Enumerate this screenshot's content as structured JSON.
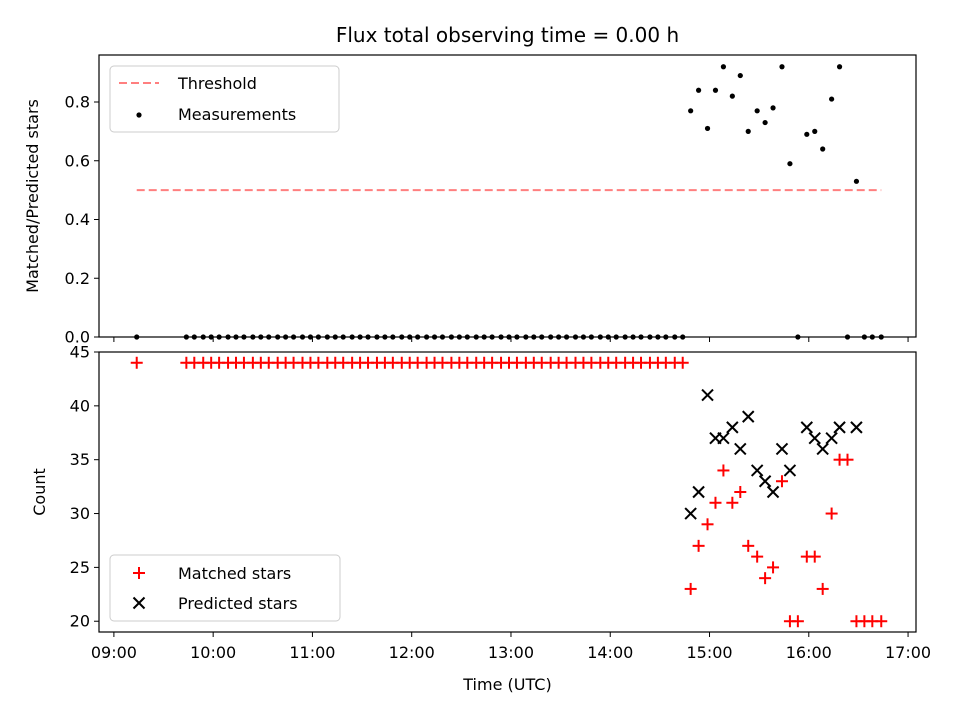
{
  "chart_data": [
    {
      "type": "scatter",
      "title": "Flux total observing time = 0.00 h",
      "ylabel": "Matched/Predicted stars",
      "ylim": [
        0,
        0.96
      ],
      "yticks": [
        0.0,
        0.2,
        0.4,
        0.6,
        0.8
      ],
      "xlim": [
        8.85,
        17.08
      ],
      "legend_position": "upper-left",
      "threshold": {
        "name": "Threshold",
        "y": 0.5,
        "x": [
          9.23,
          16.73
        ],
        "color": "#ff7f7f"
      },
      "series": [
        {
          "name": "Measurements",
          "color": "#000000",
          "x": [
            9.23,
            9.73,
            9.81,
            9.9,
            9.98,
            10.06,
            10.15,
            10.23,
            10.31,
            10.4,
            10.48,
            10.56,
            10.65,
            10.73,
            10.81,
            10.9,
            10.98,
            11.06,
            11.15,
            11.23,
            11.31,
            11.4,
            11.48,
            11.56,
            11.65,
            11.73,
            11.81,
            11.9,
            11.98,
            12.06,
            12.15,
            12.23,
            12.31,
            12.4,
            12.48,
            12.56,
            12.65,
            12.73,
            12.81,
            12.9,
            12.98,
            13.06,
            13.15,
            13.23,
            13.31,
            13.4,
            13.48,
            13.56,
            13.65,
            13.73,
            13.81,
            13.9,
            13.98,
            14.06,
            14.15,
            14.23,
            14.31,
            14.4,
            14.48,
            14.56,
            14.65,
            14.73,
            14.81,
            14.89,
            14.98,
            15.06,
            15.14,
            15.23,
            15.31,
            15.39,
            15.48,
            15.56,
            15.64,
            15.73,
            15.81,
            15.89,
            15.98,
            16.06,
            16.14,
            16.23,
            16.31,
            16.39,
            16.48,
            16.56,
            16.64,
            16.73
          ],
          "y": [
            0,
            0,
            0,
            0,
            0,
            0,
            0,
            0,
            0,
            0,
            0,
            0,
            0,
            0,
            0,
            0,
            0,
            0,
            0,
            0,
            0,
            0,
            0,
            0,
            0,
            0,
            0,
            0,
            0,
            0,
            0,
            0,
            0,
            0,
            0,
            0,
            0,
            0,
            0,
            0,
            0,
            0,
            0,
            0,
            0,
            0,
            0,
            0,
            0,
            0,
            0,
            0,
            0,
            0,
            0,
            0,
            0,
            0,
            0,
            0,
            0,
            0,
            0.77,
            0.84,
            0.71,
            0.84,
            0.92,
            0.82,
            0.89,
            0.7,
            0.77,
            0.73,
            0.78,
            0.92,
            0.59,
            0,
            0.69,
            0.7,
            0.64,
            0.81,
            0.92,
            0,
            0.53,
            0,
            0,
            0
          ]
        }
      ]
    },
    {
      "type": "scatter",
      "xlabel": "Time (UTC)",
      "ylabel": "Count",
      "ylim": [
        19,
        45
      ],
      "yticks": [
        20,
        25,
        30,
        35,
        40,
        45
      ],
      "xlim": [
        8.85,
        17.08
      ],
      "xticks": [
        "09:00",
        "10:00",
        "11:00",
        "12:00",
        "13:00",
        "14:00",
        "15:00",
        "16:00",
        "17:00"
      ],
      "legend_position": "lower-left",
      "series": [
        {
          "name": "Matched stars",
          "color": "#ff0000",
          "marker": "plus",
          "x": [
            9.23,
            9.73,
            9.81,
            9.9,
            9.98,
            10.06,
            10.15,
            10.23,
            10.31,
            10.4,
            10.48,
            10.56,
            10.65,
            10.73,
            10.81,
            10.9,
            10.98,
            11.06,
            11.15,
            11.23,
            11.31,
            11.4,
            11.48,
            11.56,
            11.65,
            11.73,
            11.81,
            11.9,
            11.98,
            12.06,
            12.15,
            12.23,
            12.31,
            12.4,
            12.48,
            12.56,
            12.65,
            12.73,
            12.81,
            12.9,
            12.98,
            13.06,
            13.15,
            13.23,
            13.31,
            13.4,
            13.48,
            13.56,
            13.65,
            13.73,
            13.81,
            13.9,
            13.98,
            14.06,
            14.15,
            14.23,
            14.31,
            14.4,
            14.48,
            14.56,
            14.65,
            14.73,
            14.81,
            14.89,
            14.98,
            15.06,
            15.14,
            15.23,
            15.31,
            15.39,
            15.48,
            15.56,
            15.64,
            15.73,
            15.81,
            15.89,
            15.98,
            16.06,
            16.14,
            16.23,
            16.31,
            16.39,
            16.48,
            16.56,
            16.64,
            16.73
          ],
          "y": [
            44,
            44,
            44,
            44,
            44,
            44,
            44,
            44,
            44,
            44,
            44,
            44,
            44,
            44,
            44,
            44,
            44,
            44,
            44,
            44,
            44,
            44,
            44,
            44,
            44,
            44,
            44,
            44,
            44,
            44,
            44,
            44,
            44,
            44,
            44,
            44,
            44,
            44,
            44,
            44,
            44,
            44,
            44,
            44,
            44,
            44,
            44,
            44,
            44,
            44,
            44,
            44,
            44,
            44,
            44,
            44,
            44,
            44,
            44,
            44,
            44,
            44,
            23,
            27,
            29,
            31,
            34,
            31,
            32,
            27,
            26,
            24,
            25,
            33,
            20,
            20,
            26,
            26,
            23,
            30,
            35,
            35,
            20,
            20,
            20,
            20
          ]
        },
        {
          "name": "Predicted stars",
          "color": "#000000",
          "marker": "x",
          "x": [
            14.81,
            14.89,
            14.98,
            15.06,
            15.14,
            15.23,
            15.31,
            15.39,
            15.48,
            15.56,
            15.64,
            15.73,
            15.81,
            15.98,
            16.06,
            16.14,
            16.23,
            16.31,
            16.48
          ],
          "y": [
            30,
            32,
            41,
            37,
            37,
            38,
            36,
            39,
            34,
            33,
            32,
            36,
            34,
            38,
            37,
            36,
            37,
            38,
            38
          ]
        }
      ]
    }
  ]
}
